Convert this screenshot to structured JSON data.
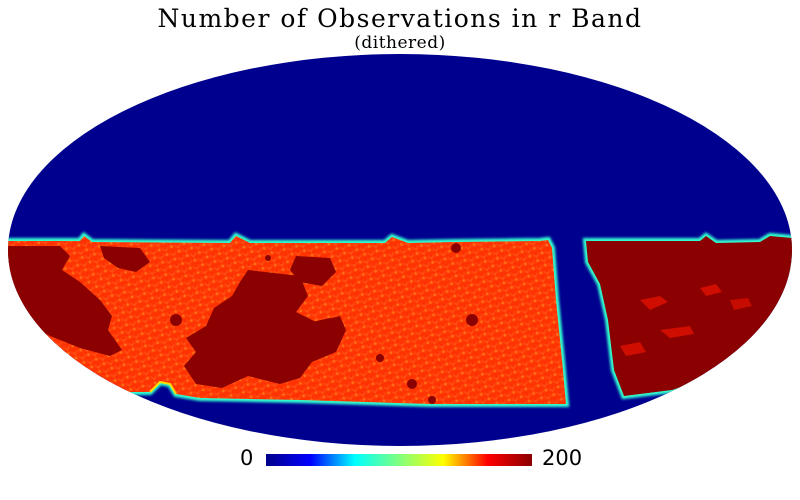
{
  "title": "Number of Observations in r Band",
  "subtitle": "(dithered)",
  "colorbar": {
    "min_label": "0",
    "max_label": "200",
    "min": 0,
    "max": 200,
    "colormap": "jet",
    "stops": [
      "#00008b",
      "#0000ff",
      "#00ffff",
      "#7fff7f",
      "#ffff00",
      "#ff0000",
      "#8b0000"
    ]
  },
  "map": {
    "projection": "mollweide",
    "background_color": "#00008f",
    "unobserved_color": "#00008f",
    "survey_fill_color": "#ff3a10",
    "saturated_color": "#8b0000"
  }
}
